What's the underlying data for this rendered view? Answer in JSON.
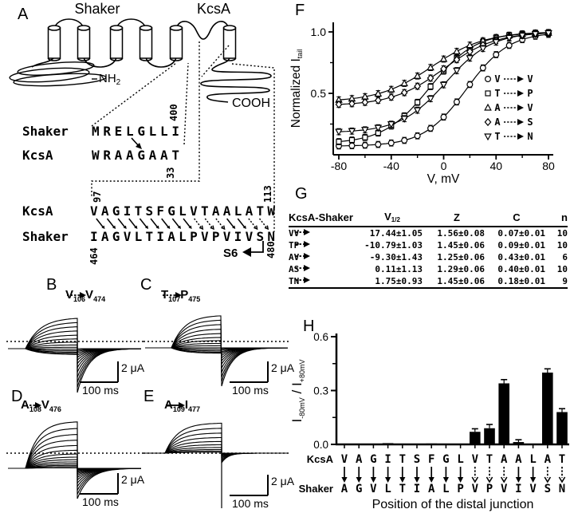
{
  "panel_letters": {
    "a": "A",
    "b": "B",
    "c": "C",
    "d": "D",
    "e": "E",
    "f": "F",
    "g": "G",
    "h": "H"
  },
  "panel_a": {
    "shaker_title": "Shaker",
    "kcsa_title": "KcsA",
    "nh2_main": "NH",
    "nh2_sub": "2",
    "cooh": "COOH",
    "align1": {
      "row1_name": "Shaker",
      "row1_seq": "MRELGLLI",
      "row1_num": "400",
      "row2_name": "KcsA",
      "row2_seq": "WRAAGAAT",
      "row2_num": "33"
    },
    "align2": {
      "row1_name": "KcsA",
      "row1_seq": "VAGITSFGLVTAALATW",
      "row1_num_start": "97",
      "row1_num_end": "113",
      "row2_name": "Shaker",
      "row2_seq": "IAGVLTIALPVPVIVSN",
      "row2_num_start": "464",
      "row2_num_end": "480",
      "dotted_positions": [
        10,
        11,
        12,
        15,
        16
      ],
      "s6_label": "S6"
    }
  },
  "trace_panels": [
    {
      "letter": "B",
      "from": "V",
      "from_sub": "106",
      "to": "V",
      "to_sub": "474",
      "arrow_style": "dotted",
      "scale_current": "2 μA",
      "scale_time": "100 ms"
    },
    {
      "letter": "C",
      "from": "T",
      "from_sub": "107",
      "to": "P",
      "to_sub": "475",
      "arrow_style": "dotted",
      "scale_current": "2 μA",
      "scale_time": "100 ms"
    },
    {
      "letter": "D",
      "from": "A",
      "from_sub": "108",
      "to": "V",
      "to_sub": "476",
      "arrow_style": "dotted",
      "scale_current": "2 μA",
      "scale_time": "100 ms"
    },
    {
      "letter": "E",
      "from": "A",
      "from_sub": "109",
      "to": "I",
      "to_sub": "477",
      "arrow_style": "solid",
      "scale_current": "2 μA",
      "scale_time": "100 ms"
    }
  ],
  "panel_g": {
    "header_col1": "KcsA-Shaker",
    "header_vhalf_main": "V",
    "header_vhalf_sub": "1/2",
    "header_z": "Z",
    "header_c": "C",
    "header_n": "n",
    "rows": [
      {
        "from": "V",
        "to": "V",
        "v_half": "17.44±1.05",
        "z": "1.56±0.08",
        "c": "0.07±0.01",
        "n": "10"
      },
      {
        "from": "T",
        "to": "P",
        "v_half": "-10.79±1.03",
        "z": "1.45±0.06",
        "c": "0.09±0.01",
        "n": "10"
      },
      {
        "from": "A",
        "to": "V",
        "v_half": "-9.30±1.43",
        "z": "1.25±0.06",
        "c": "0.43±0.01",
        "n": "6"
      },
      {
        "from": "A",
        "to": "S",
        "v_half": "0.11±1.13",
        "z": "1.29±0.06",
        "c": "0.40±0.01",
        "n": "10"
      },
      {
        "from": "T",
        "to": "N",
        "v_half": "1.75±0.93",
        "z": "1.45±0.06",
        "c": "0.18±0.01",
        "n": "9"
      }
    ]
  },
  "chart_data": [
    {
      "panel": "F",
      "type": "scatter",
      "title": "",
      "xlabel": "V, mV",
      "ylabel_main": "Normalized I",
      "ylabel_sub": "tail",
      "xlim": [
        -80,
        80
      ],
      "ylim": [
        0,
        1.05
      ],
      "xticks": [
        -80,
        -40,
        0,
        40,
        80
      ],
      "ytick_values": [
        0.5,
        1.0
      ],
      "ytick_labels": [
        "0.5",
        "1.0"
      ],
      "x": [
        -80,
        -70,
        -60,
        -50,
        -40,
        -30,
        -20,
        -10,
        0,
        10,
        20,
        30,
        40,
        50,
        60,
        70,
        80
      ],
      "point_error": 0.025,
      "legend_position": "lower right",
      "series": [
        {
          "name": "V → V",
          "symbol": "circle",
          "v_half": 17.44,
          "z": 1.56,
          "c": 0.07,
          "values": [
            0.072,
            0.074,
            0.078,
            0.084,
            0.096,
            0.117,
            0.154,
            0.215,
            0.307,
            0.43,
            0.572,
            0.707,
            0.815,
            0.89,
            0.937,
            0.965,
            0.98
          ]
        },
        {
          "name": "T → P",
          "symbol": "square",
          "v_half": -10.79,
          "z": 1.45,
          "c": 0.09,
          "values": [
            0.107,
            0.12,
            0.141,
            0.177,
            0.234,
            0.317,
            0.427,
            0.555,
            0.681,
            0.788,
            0.866,
            0.92,
            0.953,
            0.973,
            0.984,
            0.991,
            0.995
          ]
        },
        {
          "name": "A → V",
          "symbol": "triangle-up",
          "v_half": -9.3,
          "z": 1.25,
          "c": 0.43,
          "values": [
            0.447,
            0.457,
            0.473,
            0.497,
            0.532,
            0.581,
            0.641,
            0.71,
            0.779,
            0.841,
            0.892,
            0.928,
            0.954,
            0.971,
            0.982,
            0.989,
            0.993
          ]
        },
        {
          "name": "A → S",
          "symbol": "diamond",
          "v_half": 0.11,
          "z": 1.29,
          "c": 0.4,
          "values": [
            0.41,
            0.416,
            0.427,
            0.443,
            0.469,
            0.506,
            0.558,
            0.624,
            0.699,
            0.774,
            0.84,
            0.893,
            0.931,
            0.956,
            0.973,
            0.983,
            0.99
          ]
        },
        {
          "name": "T → N",
          "symbol": "triangle-down",
          "v_half": 1.75,
          "z": 1.45,
          "c": 0.18,
          "values": [
            0.188,
            0.193,
            0.203,
            0.22,
            0.249,
            0.294,
            0.363,
            0.457,
            0.57,
            0.685,
            0.787,
            0.865,
            0.918,
            0.952,
            0.971,
            0.983,
            0.99
          ]
        }
      ],
      "legend": [
        {
          "from": "V",
          "to": "V",
          "symbol": "circle"
        },
        {
          "from": "T",
          "to": "P",
          "symbol": "square"
        },
        {
          "from": "A",
          "to": "V",
          "symbol": "triangle-up"
        },
        {
          "from": "A",
          "to": "S",
          "symbol": "diamond"
        },
        {
          "from": "T",
          "to": "N",
          "symbol": "triangle-down"
        }
      ]
    },
    {
      "panel": "H",
      "type": "bar",
      "ylabel_i": "I",
      "ylabel_sub_neg": "-80mV",
      "ylabel_mid": " / I",
      "ylabel_sub_pos": "+80mV",
      "xlabel": "Position of the distal junction",
      "kcsa_row_label": "KcsA",
      "shaker_row_label": "Shaker",
      "ylim": [
        0,
        0.6
      ],
      "yticks": [
        0.0,
        0.3,
        0.6
      ],
      "ytick_labels": [
        "0.0",
        "0.3",
        "0.6"
      ],
      "kcsa_letters": [
        "V",
        "A",
        "G",
        "I",
        "T",
        "S",
        "F",
        "G",
        "L",
        "V",
        "T",
        "A",
        "A",
        "L",
        "A",
        "T"
      ],
      "shaker_letters": [
        "A",
        "G",
        "V",
        "L",
        "T",
        "I",
        "A",
        "L",
        "P",
        "V",
        "P",
        "V",
        "I",
        "V",
        "S",
        "N"
      ],
      "values": [
        0.003,
        0.003,
        0.003,
        0.007,
        0.003,
        0.003,
        0.005,
        0.003,
        0.003,
        0.07,
        0.09,
        0.34,
        0.013,
        0.003,
        0.4,
        0.18
      ],
      "errors": [
        0,
        0,
        0,
        0,
        0,
        0,
        0,
        0,
        0,
        0.008,
        0.012,
        0.012,
        0.004,
        0,
        0.012,
        0.01
      ],
      "dotted_arrow_indices": [
        9,
        10,
        11,
        14,
        15
      ]
    }
  ]
}
